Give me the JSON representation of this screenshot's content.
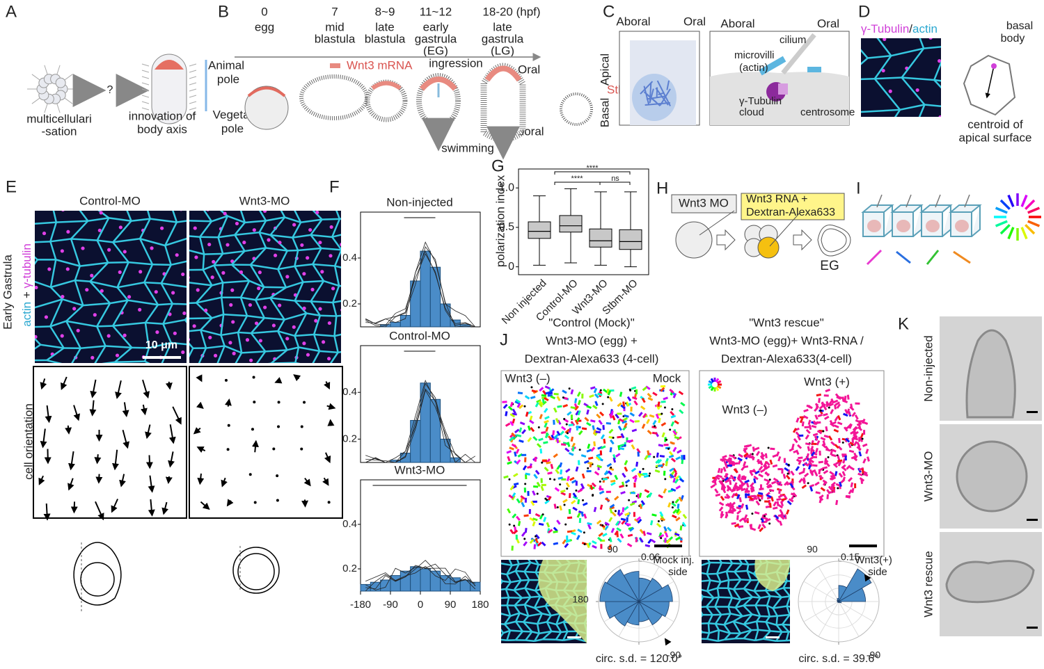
{
  "A": {
    "label": "A",
    "question": "?",
    "left_caption": [
      "multicellulari",
      "-sation"
    ],
    "right_caption": [
      "innovation of",
      "body axis"
    ]
  },
  "B": {
    "label": "B",
    "stages": [
      {
        "time": "0",
        "name": [
          "egg"
        ]
      },
      {
        "time": "7",
        "name": [
          "mid",
          "blastula"
        ]
      },
      {
        "time": "8~9",
        "name": [
          "late",
          "blastula"
        ]
      },
      {
        "time": "11~12",
        "name": [
          "early",
          "gastrula",
          "(EG)"
        ]
      },
      {
        "time": "18-20 (hpf)",
        "name": [
          "late",
          "gastrula",
          "(LG)"
        ]
      }
    ],
    "animal_pole": [
      "Animal",
      "pole"
    ],
    "vegetal_pole": [
      "Vegetal",
      "pole"
    ],
    "wnt3_mrna": "Wnt3 mRNA",
    "ingression": "ingression",
    "oral": "Oral",
    "aboral": "Aboral",
    "swimming": "swimming"
  },
  "C": {
    "label": "C",
    "aboral": "Aboral",
    "oral": "Oral",
    "apical": "Apical",
    "basal": "Basal",
    "stbm": "Stbm",
    "zoom_aboral": "Aboral",
    "zoom_oral": "Oral",
    "cilium": "cilium",
    "microvilli": [
      "microvilli",
      "(actin)"
    ],
    "tubulin_cloud": [
      "γ-Tubulin",
      "cloud"
    ],
    "centrosome": "centrosome"
  },
  "D": {
    "label": "D",
    "stain_tubulin": "γ-Tubulin",
    "stain_sep": "/",
    "stain_actin": "actin",
    "basal_body": [
      "basal",
      "body"
    ],
    "centroid": [
      "centroid of",
      "apical surface"
    ]
  },
  "E": {
    "label": "E",
    "conditions": [
      "Control-MO",
      "Wnt3-MO"
    ],
    "stain_actin": "actin",
    "stain_plus": " + ",
    "stain_tubulin": "γ-tubulin",
    "stage": "Early Gastrula",
    "scale_bar": "10 μm",
    "orientation": "cell orientation"
  },
  "F": {
    "label": "F",
    "xlim": [
      -180,
      180
    ],
    "ylim": [
      0.1,
      0.6
    ],
    "xticks": [
      -180,
      -90,
      0,
      90,
      180
    ],
    "yticks": [
      0.2,
      0.4
    ],
    "bins": [
      -180,
      -150,
      -120,
      -90,
      -60,
      -30,
      0,
      30,
      60,
      90,
      120,
      150,
      180
    ],
    "histograms": [
      {
        "title": "Non-injected",
        "counts": [
          0.1,
          0.1,
          0.11,
          0.12,
          0.15,
          0.3,
          0.43,
          0.36,
          0.2,
          0.13,
          0.11,
          0.1
        ]
      },
      {
        "title": "Control-MO",
        "counts": [
          0.1,
          0.1,
          0.1,
          0.11,
          0.14,
          0.28,
          0.44,
          0.37,
          0.2,
          0.12,
          0.1,
          0.1
        ]
      },
      {
        "title": "Wnt3-MO",
        "counts": [
          0.13,
          0.14,
          0.15,
          0.17,
          0.19,
          0.21,
          0.2,
          0.19,
          0.17,
          0.16,
          0.15,
          0.14
        ]
      }
    ]
  },
  "G": {
    "label": "G",
    "ylabel": "polarization index",
    "ylim": [
      -0.1,
      1.24
    ],
    "yticks": [
      {
        "value": 1,
        "label": "1.0"
      },
      0.5,
      0
    ],
    "boxes": [
      {
        "name": "Non injected",
        "whisker_low": 0.02,
        "q1": 0.36,
        "median": 0.45,
        "q3": 0.57,
        "whisker_high": 0.9
      },
      {
        "name": "Control-MO",
        "whisker_low": 0.05,
        "q1": 0.44,
        "median": 0.52,
        "q3": 0.65,
        "whisker_high": 0.99
      },
      {
        "name": "Wnt3-MO",
        "whisker_low": 0.02,
        "q1": 0.25,
        "median": 0.33,
        "q3": 0.48,
        "whisker_high": 0.95
      },
      {
        "name": "Stbm-MO",
        "whisker_low": 0,
        "q1": 0.22,
        "median": 0.32,
        "q3": 0.47,
        "whisker_high": 0.95
      }
    ],
    "significance": [
      "****",
      "****",
      "ns"
    ]
  },
  "H": {
    "label": "H",
    "mo": "Wnt3 MO",
    "rna": [
      "Wnt3 RNA +",
      "Dextran-Alexa633"
    ],
    "stage": "EG"
  },
  "I": {
    "label": "I"
  },
  "J": {
    "label": "J",
    "left_title": [
      "\"Control (Mock)\"",
      "Wnt3-MO (egg) +",
      "Dextran-Alexa633 (4-cell)"
    ],
    "right_title": [
      "\"Wnt3 rescue\"",
      "Wnt3-MO (egg)+ Wnt3-RNA /",
      "Dextran-Alexa633(4-cell)"
    ],
    "left_tags": [
      "Wnt3 (–)",
      "Mock"
    ],
    "right_tags": [
      "Wnt3 (+)",
      "Wnt3 (–)"
    ],
    "bins": [
      -180,
      -150,
      -120,
      -90,
      -60,
      -30,
      0,
      30,
      60,
      90,
      120,
      150,
      180
    ],
    "roses": [
      {
        "rlim": 0.06,
        "rticks": [
          0.06
        ],
        "angle_ticks": [
          90,
          180,
          -90
        ],
        "side": [
          "Mock inj.",
          "side"
        ],
        "values": [
          0.05,
          0.042,
          0.035,
          0.03,
          0.04,
          0.045,
          0.05,
          0.04,
          0.035,
          0.045,
          0.055,
          0.058
        ],
        "caption": "circ. s.d. = 120.0°"
      },
      {
        "rlim": 0.15,
        "rticks": [
          0.15
        ],
        "angle_ticks": [
          90,
          -90
        ],
        "side": [
          "Wnt3(+)",
          "side"
        ],
        "values": [
          0.005,
          0.003,
          0.003,
          0.004,
          0.005,
          0.01,
          0.1,
          0.14,
          0.06,
          0.012,
          0.007,
          0.005
        ],
        "caption": "circ. s.d. = 39.6°"
      }
    ]
  },
  "K": {
    "label": "K",
    "conditions": [
      "Non-injected",
      "Wnt3-MO",
      "Wnt3 rescue"
    ]
  }
}
